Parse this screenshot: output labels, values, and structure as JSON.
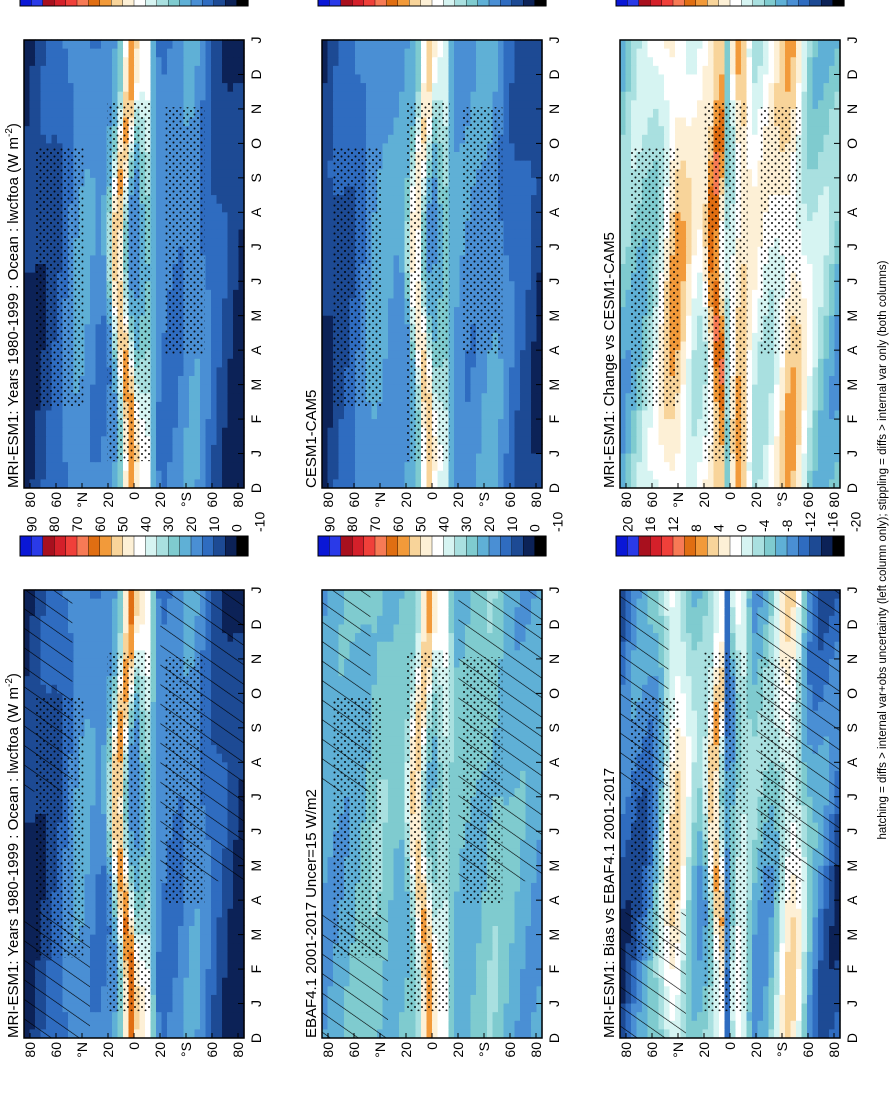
{
  "figure": {
    "footnote": "hatching = diffs > internal var+obs uncertainty (left column only); stippling = diffs > internal var only (both columns)"
  },
  "scales": {
    "absolute": {
      "labels": [
        "90",
        "80",
        "70",
        "60",
        "50",
        "40",
        "30",
        "20",
        "10",
        "0",
        "-10"
      ],
      "colors": [
        "#0a17d6",
        "#2a3ae8",
        "#a8101e",
        "#d4202a",
        "#f0403a",
        "#f77a55",
        "#e06e12",
        "#f29a3a",
        "#f8d49a",
        "#fdf0d6",
        "#ffffff",
        "#d6f4f2",
        "#a9e0e0",
        "#7fcbcf",
        "#5fb0d6",
        "#4a8fd4",
        "#2f6cc0",
        "#1d4a94",
        "#0c2257",
        "#000000"
      ]
    },
    "difference": {
      "labels": [
        "20",
        "16",
        "12",
        "8",
        "4",
        "0",
        "-4",
        "-8",
        "-12",
        "-16",
        "-20"
      ],
      "colors": [
        "#0a17d6",
        "#2a3ae8",
        "#a8101e",
        "#d4202a",
        "#f0403a",
        "#f77a55",
        "#e06e12",
        "#f29a3a",
        "#f8d49a",
        "#fdf0d6",
        "#ffffff",
        "#d6f4f2",
        "#a9e0e0",
        "#7fcbcf",
        "#5fb0d6",
        "#4a8fd4",
        "#2f6cc0",
        "#1d4a94",
        "#0c2257",
        "#000000"
      ]
    }
  },
  "chart_data": [
    {
      "type": "heatmap",
      "title": "MRI-ESM1: Years 1980-1999 : Ocean : lwcftoa (W m",
      "title_sup": "-2",
      "title_end": ")",
      "x": [
        "D",
        "J",
        "F",
        "M",
        "A",
        "M",
        "J",
        "J",
        "A",
        "S",
        "O",
        "N",
        "D",
        "J"
      ],
      "y_ticks": [
        "80",
        "60",
        "°N",
        "20",
        "0",
        "20",
        "°S",
        "60",
        "80"
      ],
      "ylim": [
        -90,
        90
      ],
      "scale": "absolute",
      "field": {
        "base": 22,
        "pole": 8,
        "itcz_amp": 42,
        "spcz_amp": 30,
        "storm_amp": 6
      },
      "hatching": true,
      "stippling": true
    },
    {
      "type": "heatmap",
      "title": "MRI-ESM1: Years 1980-1999 : Ocean : lwcftoa (W m",
      "title_sup": "-2",
      "title_end": ")",
      "x": [
        "D",
        "J",
        "F",
        "M",
        "A",
        "M",
        "J",
        "J",
        "A",
        "S",
        "O",
        "N",
        "D",
        "J"
      ],
      "y_ticks": [
        "80",
        "60",
        "°N",
        "20",
        "0",
        "20",
        "°S",
        "60",
        "80"
      ],
      "ylim": [
        -90,
        90
      ],
      "scale": "absolute",
      "field": {
        "base": 22,
        "pole": 8,
        "itcz_amp": 40,
        "spcz_amp": 28,
        "storm_amp": 6
      },
      "hatching": false,
      "stippling": true
    },
    {
      "type": "heatmap",
      "title": "EBAF4.1 2001-2017 Uncer=15 W/m2",
      "title_sup": "",
      "title_end": "",
      "x": [
        "D",
        "J",
        "F",
        "M",
        "A",
        "M",
        "J",
        "J",
        "A",
        "S",
        "O",
        "N",
        "D",
        "J"
      ],
      "y_ticks": [
        "80",
        "60",
        "°N",
        "20",
        "0",
        "20",
        "°S",
        "60",
        "80"
      ],
      "ylim": [
        -90,
        90
      ],
      "scale": "absolute",
      "field": {
        "base": 30,
        "pole": 26,
        "itcz_amp": 30,
        "spcz_amp": 20,
        "storm_amp": 4
      },
      "hatching": true,
      "stippling": true
    },
    {
      "type": "heatmap",
      "title": "CESM1-CAM5",
      "title_sup": "",
      "title_end": "",
      "x": [
        "D",
        "J",
        "F",
        "M",
        "A",
        "M",
        "J",
        "J",
        "A",
        "S",
        "O",
        "N",
        "D",
        "J"
      ],
      "y_ticks": [
        "80",
        "60",
        "°N",
        "20",
        "0",
        "20",
        "°S",
        "60",
        "80"
      ],
      "ylim": [
        -90,
        90
      ],
      "scale": "absolute",
      "field": {
        "base": 24,
        "pole": 10,
        "itcz_amp": 32,
        "spcz_amp": 22,
        "storm_amp": 5
      },
      "hatching": false,
      "stippling": true
    },
    {
      "type": "heatmap",
      "title": "MRI-ESM1: Bias vs EBAF4.1 2001-2017",
      "title_sup": "",
      "title_end": "",
      "x": [
        "D",
        "J",
        "F",
        "M",
        "A",
        "M",
        "J",
        "J",
        "A",
        "S",
        "O",
        "N",
        "D",
        "J"
      ],
      "y_ticks": [
        "80",
        "60",
        "°N",
        "20",
        "0",
        "20",
        "°S",
        "60",
        "80"
      ],
      "ylim": [
        -90,
        90
      ],
      "scale": "difference",
      "field": {
        "base": -4,
        "pole": -10,
        "itcz_amp": 14,
        "spcz_amp": 8,
        "storm_amp": 10,
        "eq_neg": -22
      },
      "hatching": true,
      "stippling": true
    },
    {
      "type": "heatmap",
      "title": "MRI-ESM1: Change vs CESM1-CAM5",
      "title_sup": "",
      "title_end": "",
      "x": [
        "D",
        "J",
        "F",
        "M",
        "A",
        "M",
        "J",
        "J",
        "A",
        "S",
        "O",
        "N",
        "D",
        "J"
      ],
      "y_ticks": [
        "80",
        "60",
        "°N",
        "20",
        "0",
        "20",
        "°S",
        "60",
        "80"
      ],
      "ylim": [
        -90,
        90
      ],
      "scale": "difference",
      "field": {
        "base": 2,
        "pole": -4,
        "itcz_amp": 12,
        "spcz_amp": 8,
        "storm_amp": 6,
        "eq_neg": -20
      },
      "hatching": false,
      "stippling": true
    }
  ]
}
